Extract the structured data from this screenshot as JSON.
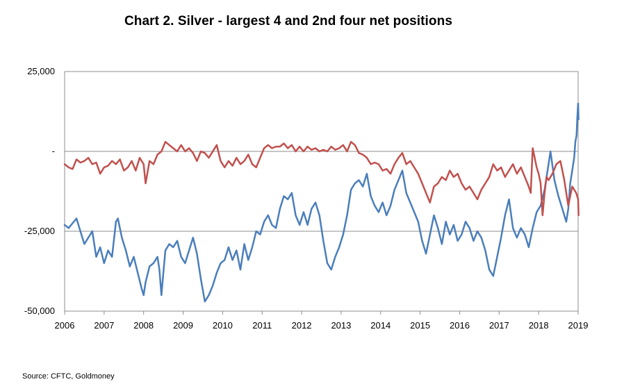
{
  "title": "Chart 2. Silver - largest 4 and 2nd four net positions",
  "source": "Source: CFTC, Goldmoney",
  "chart_data": {
    "type": "line",
    "title": "Chart 2. Silver - largest 4 and 2nd four net positions",
    "xlabel": "",
    "ylabel": "",
    "xlim": [
      2006,
      2019
    ],
    "ylim": [
      -50000,
      25000
    ],
    "y_ticks": [
      {
        "value": 25000,
        "label": "25,000"
      },
      {
        "value": 0,
        "label": "-"
      },
      {
        "value": -25000,
        "label": "-25,000"
      },
      {
        "value": -50000,
        "label": "-50,000"
      }
    ],
    "x_ticks": [
      "2006",
      "2007",
      "2008",
      "2009",
      "2010",
      "2011",
      "2012",
      "2013",
      "2014",
      "2015",
      "2016",
      "2017",
      "2018",
      "2019"
    ],
    "grid": "horizontal",
    "legend": "none",
    "series": [
      {
        "color": "#4a7ebb",
        "points": [
          [
            2006.0,
            -23000
          ],
          [
            2006.1,
            -24000
          ],
          [
            2006.2,
            -22500
          ],
          [
            2006.3,
            -21000
          ],
          [
            2006.4,
            -25000
          ],
          [
            2006.5,
            -29000
          ],
          [
            2006.6,
            -27000
          ],
          [
            2006.7,
            -25000
          ],
          [
            2006.8,
            -33000
          ],
          [
            2006.9,
            -30000
          ],
          [
            2007.0,
            -35000
          ],
          [
            2007.1,
            -31000
          ],
          [
            2007.2,
            -33000
          ],
          [
            2007.3,
            -22000
          ],
          [
            2007.35,
            -21000
          ],
          [
            2007.45,
            -27000
          ],
          [
            2007.55,
            -31000
          ],
          [
            2007.65,
            -36000
          ],
          [
            2007.75,
            -33000
          ],
          [
            2007.85,
            -38000
          ],
          [
            2007.95,
            -43000
          ],
          [
            2008.0,
            -45000
          ],
          [
            2008.05,
            -41000
          ],
          [
            2008.15,
            -36000
          ],
          [
            2008.25,
            -35000
          ],
          [
            2008.35,
            -33000
          ],
          [
            2008.4,
            -37000
          ],
          [
            2008.45,
            -45000
          ],
          [
            2008.5,
            -38000
          ],
          [
            2008.55,
            -31000
          ],
          [
            2008.65,
            -29000
          ],
          [
            2008.75,
            -30000
          ],
          [
            2008.85,
            -28000
          ],
          [
            2008.95,
            -33000
          ],
          [
            2009.05,
            -35000
          ],
          [
            2009.15,
            -31000
          ],
          [
            2009.25,
            -27000
          ],
          [
            2009.35,
            -32000
          ],
          [
            2009.45,
            -40000
          ],
          [
            2009.55,
            -47000
          ],
          [
            2009.65,
            -45000
          ],
          [
            2009.75,
            -42000
          ],
          [
            2009.85,
            -38000
          ],
          [
            2009.95,
            -35000
          ],
          [
            2010.05,
            -34000
          ],
          [
            2010.15,
            -30000
          ],
          [
            2010.25,
            -34000
          ],
          [
            2010.35,
            -31000
          ],
          [
            2010.45,
            -37000
          ],
          [
            2010.55,
            -29000
          ],
          [
            2010.65,
            -34000
          ],
          [
            2010.75,
            -30000
          ],
          [
            2010.85,
            -25000
          ],
          [
            2010.95,
            -26000
          ],
          [
            2011.05,
            -22000
          ],
          [
            2011.15,
            -20000
          ],
          [
            2011.25,
            -23000
          ],
          [
            2011.35,
            -24000
          ],
          [
            2011.45,
            -18000
          ],
          [
            2011.55,
            -14000
          ],
          [
            2011.65,
            -15000
          ],
          [
            2011.75,
            -13000
          ],
          [
            2011.85,
            -20000
          ],
          [
            2011.95,
            -23000
          ],
          [
            2012.05,
            -19000
          ],
          [
            2012.15,
            -23000
          ],
          [
            2012.25,
            -18000
          ],
          [
            2012.35,
            -16000
          ],
          [
            2012.45,
            -20000
          ],
          [
            2012.55,
            -28000
          ],
          [
            2012.65,
            -35000
          ],
          [
            2012.75,
            -37000
          ],
          [
            2012.85,
            -33000
          ],
          [
            2012.95,
            -30000
          ],
          [
            2013.05,
            -26000
          ],
          [
            2013.15,
            -20000
          ],
          [
            2013.25,
            -12000
          ],
          [
            2013.35,
            -10000
          ],
          [
            2013.45,
            -9000
          ],
          [
            2013.55,
            -11000
          ],
          [
            2013.65,
            -7000
          ],
          [
            2013.75,
            -14000
          ],
          [
            2013.85,
            -17000
          ],
          [
            2013.95,
            -19000
          ],
          [
            2014.05,
            -16000
          ],
          [
            2014.15,
            -20000
          ],
          [
            2014.25,
            -17000
          ],
          [
            2014.35,
            -12000
          ],
          [
            2014.45,
            -9000
          ],
          [
            2014.55,
            -6000
          ],
          [
            2014.65,
            -13000
          ],
          [
            2014.75,
            -16000
          ],
          [
            2014.85,
            -19000
          ],
          [
            2014.95,
            -22000
          ],
          [
            2015.05,
            -28000
          ],
          [
            2015.15,
            -32000
          ],
          [
            2015.25,
            -26000
          ],
          [
            2015.35,
            -20000
          ],
          [
            2015.45,
            -24000
          ],
          [
            2015.55,
            -29000
          ],
          [
            2015.65,
            -22000
          ],
          [
            2015.75,
            -26000
          ],
          [
            2015.85,
            -23000
          ],
          [
            2015.95,
            -28000
          ],
          [
            2016.05,
            -26000
          ],
          [
            2016.15,
            -22000
          ],
          [
            2016.25,
            -24000
          ],
          [
            2016.35,
            -28000
          ],
          [
            2016.45,
            -25000
          ],
          [
            2016.55,
            -27000
          ],
          [
            2016.65,
            -31000
          ],
          [
            2016.75,
            -37000
          ],
          [
            2016.85,
            -39000
          ],
          [
            2016.95,
            -33000
          ],
          [
            2017.05,
            -27000
          ],
          [
            2017.15,
            -20000
          ],
          [
            2017.25,
            -15000
          ],
          [
            2017.35,
            -24000
          ],
          [
            2017.45,
            -27000
          ],
          [
            2017.55,
            -24000
          ],
          [
            2017.65,
            -26000
          ],
          [
            2017.75,
            -30000
          ],
          [
            2017.85,
            -24000
          ],
          [
            2017.95,
            -19000
          ],
          [
            2018.05,
            -17000
          ],
          [
            2018.15,
            -12000
          ],
          [
            2018.25,
            -4000
          ],
          [
            2018.3,
            0
          ],
          [
            2018.4,
            -9000
          ],
          [
            2018.5,
            -14000
          ],
          [
            2018.6,
            -18000
          ],
          [
            2018.7,
            -22000
          ],
          [
            2018.75,
            -18000
          ],
          [
            2018.8,
            -10000
          ],
          [
            2018.85,
            -6000
          ],
          [
            2018.9,
            -2000
          ],
          [
            2018.93,
            3000
          ],
          [
            2018.96,
            5000
          ],
          [
            2018.98,
            11000
          ],
          [
            2019.0,
            15000
          ],
          [
            2019.01,
            10000
          ]
        ]
      },
      {
        "color": "#c0504d",
        "points": [
          [
            2006.0,
            -4000
          ],
          [
            2006.1,
            -5000
          ],
          [
            2006.2,
            -5500
          ],
          [
            2006.3,
            -2500
          ],
          [
            2006.4,
            -3500
          ],
          [
            2006.5,
            -3000
          ],
          [
            2006.6,
            -2000
          ],
          [
            2006.7,
            -4000
          ],
          [
            2006.8,
            -3500
          ],
          [
            2006.9,
            -7000
          ],
          [
            2007.0,
            -5000
          ],
          [
            2007.1,
            -4500
          ],
          [
            2007.2,
            -3000
          ],
          [
            2007.3,
            -4000
          ],
          [
            2007.4,
            -2500
          ],
          [
            2007.5,
            -6000
          ],
          [
            2007.6,
            -5000
          ],
          [
            2007.7,
            -3000
          ],
          [
            2007.8,
            -6000
          ],
          [
            2007.9,
            -2000
          ],
          [
            2008.0,
            -4000
          ],
          [
            2008.05,
            -10000
          ],
          [
            2008.15,
            -3000
          ],
          [
            2008.25,
            -4000
          ],
          [
            2008.35,
            -1000
          ],
          [
            2008.45,
            0
          ],
          [
            2008.55,
            3000
          ],
          [
            2008.65,
            2000
          ],
          [
            2008.75,
            1000
          ],
          [
            2008.85,
            0
          ],
          [
            2008.95,
            2000
          ],
          [
            2009.05,
            0
          ],
          [
            2009.15,
            1000
          ],
          [
            2009.25,
            -500
          ],
          [
            2009.35,
            -3000
          ],
          [
            2009.45,
            0
          ],
          [
            2009.55,
            -500
          ],
          [
            2009.65,
            -2000
          ],
          [
            2009.75,
            0
          ],
          [
            2009.85,
            2000
          ],
          [
            2009.95,
            -3000
          ],
          [
            2010.05,
            -5000
          ],
          [
            2010.15,
            -3000
          ],
          [
            2010.25,
            -4500
          ],
          [
            2010.35,
            -2000
          ],
          [
            2010.45,
            -4000
          ],
          [
            2010.55,
            -3000
          ],
          [
            2010.65,
            -1000
          ],
          [
            2010.75,
            -4000
          ],
          [
            2010.85,
            -5000
          ],
          [
            2010.95,
            -2000
          ],
          [
            2011.05,
            1000
          ],
          [
            2011.15,
            2000
          ],
          [
            2011.25,
            1000
          ],
          [
            2011.35,
            1500
          ],
          [
            2011.45,
            1500
          ],
          [
            2011.55,
            2500
          ],
          [
            2011.65,
            1000
          ],
          [
            2011.75,
            2000
          ],
          [
            2011.85,
            0
          ],
          [
            2011.95,
            1500
          ],
          [
            2012.05,
            0
          ],
          [
            2012.15,
            1500
          ],
          [
            2012.25,
            500
          ],
          [
            2012.35,
            1000
          ],
          [
            2012.45,
            0
          ],
          [
            2012.55,
            500
          ],
          [
            2012.65,
            0
          ],
          [
            2012.75,
            1500
          ],
          [
            2012.85,
            500
          ],
          [
            2012.95,
            1000
          ],
          [
            2013.05,
            2000
          ],
          [
            2013.15,
            0
          ],
          [
            2013.25,
            3000
          ],
          [
            2013.35,
            2000
          ],
          [
            2013.45,
            -500
          ],
          [
            2013.55,
            -1000
          ],
          [
            2013.65,
            -2000
          ],
          [
            2013.75,
            -4000
          ],
          [
            2013.85,
            -3500
          ],
          [
            2013.95,
            -4000
          ],
          [
            2014.05,
            -6000
          ],
          [
            2014.15,
            -5500
          ],
          [
            2014.25,
            -7000
          ],
          [
            2014.35,
            -4000
          ],
          [
            2014.45,
            -2000
          ],
          [
            2014.55,
            -500
          ],
          [
            2014.65,
            -4000
          ],
          [
            2014.75,
            -3000
          ],
          [
            2014.85,
            -5000
          ],
          [
            2014.95,
            -7000
          ],
          [
            2015.05,
            -10000
          ],
          [
            2015.15,
            -13000
          ],
          [
            2015.25,
            -16000
          ],
          [
            2015.35,
            -11000
          ],
          [
            2015.45,
            -10000
          ],
          [
            2015.55,
            -8000
          ],
          [
            2015.65,
            -9000
          ],
          [
            2015.75,
            -6000
          ],
          [
            2015.85,
            -8000
          ],
          [
            2015.95,
            -7000
          ],
          [
            2016.05,
            -10000
          ],
          [
            2016.15,
            -12000
          ],
          [
            2016.25,
            -11000
          ],
          [
            2016.35,
            -13000
          ],
          [
            2016.45,
            -15000
          ],
          [
            2016.55,
            -12000
          ],
          [
            2016.65,
            -10000
          ],
          [
            2016.75,
            -8000
          ],
          [
            2016.85,
            -4000
          ],
          [
            2016.95,
            -6000
          ],
          [
            2017.05,
            -5000
          ],
          [
            2017.15,
            -8000
          ],
          [
            2017.25,
            -6000
          ],
          [
            2017.35,
            -4000
          ],
          [
            2017.45,
            -7000
          ],
          [
            2017.55,
            -5000
          ],
          [
            2017.65,
            -8000
          ],
          [
            2017.75,
            -11000
          ],
          [
            2017.8,
            -13000
          ],
          [
            2017.85,
            1000
          ],
          [
            2017.9,
            -2000
          ],
          [
            2017.95,
            -5000
          ],
          [
            2018.0,
            -7000
          ],
          [
            2018.05,
            -10000
          ],
          [
            2018.1,
            -20000
          ],
          [
            2018.15,
            -13000
          ],
          [
            2018.2,
            -8000
          ],
          [
            2018.25,
            -9000
          ],
          [
            2018.35,
            -7000
          ],
          [
            2018.45,
            -4000
          ],
          [
            2018.55,
            -3000
          ],
          [
            2018.6,
            -6000
          ],
          [
            2018.65,
            -9000
          ],
          [
            2018.7,
            -13000
          ],
          [
            2018.75,
            -17000
          ],
          [
            2018.8,
            -14000
          ],
          [
            2018.85,
            -11000
          ],
          [
            2018.9,
            -12000
          ],
          [
            2018.95,
            -13000
          ],
          [
            2019.0,
            -15000
          ],
          [
            2019.01,
            -20000
          ]
        ]
      }
    ]
  }
}
